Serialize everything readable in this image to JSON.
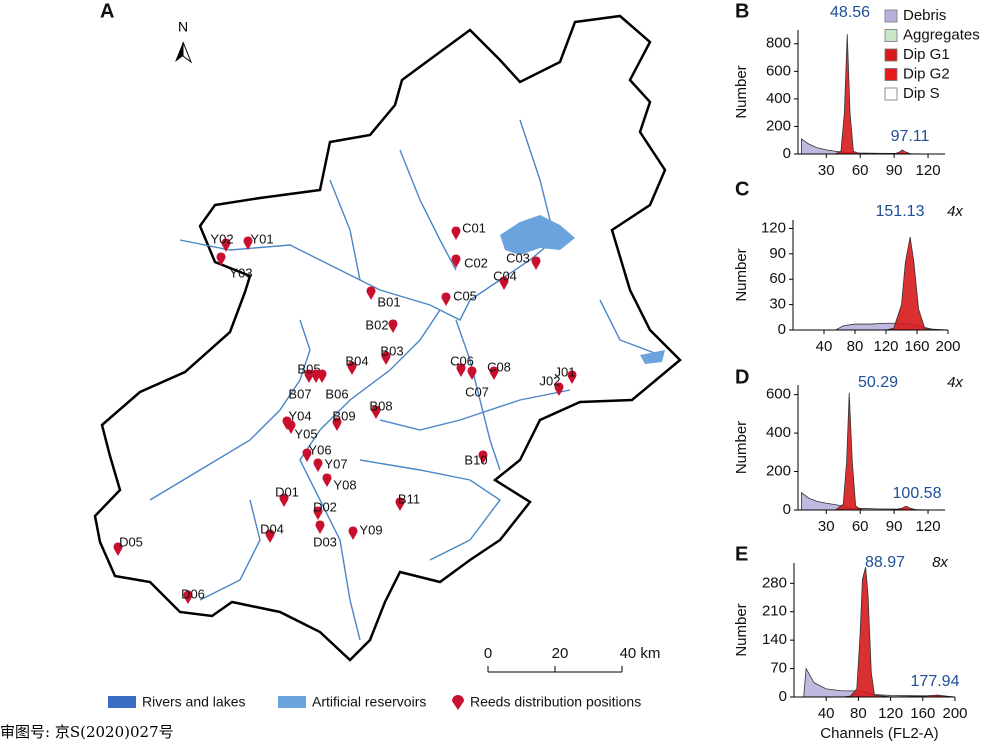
{
  "map": {
    "label": "A",
    "north": "N",
    "sites": [
      "Y01",
      "Y02",
      "Y03",
      "C01",
      "C02",
      "C03",
      "C04",
      "C05",
      "B01",
      "B02",
      "B03",
      "B04",
      "B05",
      "B06",
      "B07",
      "C06",
      "C07",
      "C08",
      "J01",
      "J02",
      "Y04",
      "Y05",
      "B09",
      "B08",
      "Y06",
      "Y07",
      "Y08",
      "B10",
      "B11",
      "D01",
      "D02",
      "D03",
      "Y09",
      "D04",
      "D05",
      "D06"
    ],
    "scale_ticks": [
      "0",
      "20",
      "40 km"
    ],
    "legend": [
      "Rivers and lakes",
      "Artificial reservoirs",
      "Reeds distribution positions"
    ],
    "approval": "审图号: 京S(2020)027号"
  },
  "chart_data": [
    {
      "type": "area",
      "panel": "B",
      "ylabel": "Number",
      "peak_labels": [
        48.56,
        97.11
      ],
      "legend": [
        {
          "name": "Debris",
          "color": "#b9b0dc"
        },
        {
          "name": "Aggregates",
          "color": "#c8e6c8"
        },
        {
          "name": "Dip G1",
          "color": "#d7191c"
        },
        {
          "name": "Dip G2",
          "color": "#e41a1c"
        },
        {
          "name": "Dip S",
          "color": "#ffffff"
        }
      ],
      "x": [
        8,
        15,
        22,
        30,
        38,
        43,
        46,
        48.56,
        51,
        54,
        60,
        75,
        90,
        95,
        97.11,
        100,
        105,
        125
      ],
      "series": [
        {
          "name": "Debris",
          "color": "#b9b0dc",
          "values": [
            110,
            70,
            45,
            30,
            20,
            15,
            12,
            10,
            9,
            8,
            7,
            5,
            4,
            3,
            3,
            3,
            2,
            0
          ]
        },
        {
          "name": "Dip G1",
          "color": "#d7191c",
          "values": [
            0,
            0,
            0,
            0,
            0,
            20,
            300,
            870,
            300,
            20,
            0,
            0,
            0,
            0,
            0,
            0,
            0,
            0
          ]
        },
        {
          "name": "Dip G2",
          "color": "#e41a1c",
          "values": [
            0,
            0,
            0,
            0,
            0,
            0,
            0,
            0,
            0,
            0,
            0,
            0,
            0,
            15,
            30,
            15,
            0,
            0
          ]
        }
      ],
      "xlim": [
        5,
        135
      ],
      "ylim": [
        0,
        900
      ],
      "xticks": [
        30,
        60,
        90,
        120
      ],
      "yticks": [
        0,
        200,
        400,
        600,
        800
      ]
    },
    {
      "type": "area",
      "panel": "C",
      "ylabel": "Number",
      "peak_labels": [
        151.13
      ],
      "scale": "4x",
      "x": [
        55,
        65,
        80,
        100,
        120,
        130,
        140,
        145,
        151.13,
        156,
        162,
        170,
        180,
        200
      ],
      "series": [
        {
          "name": "Debris",
          "color": "#b9b0dc",
          "values": [
            0,
            5,
            7,
            7,
            8,
            8,
            8,
            8,
            7,
            6,
            5,
            3,
            1,
            0
          ]
        },
        {
          "name": "Dip G1",
          "color": "#d7191c",
          "values": [
            0,
            0,
            0,
            0,
            0,
            2,
            30,
            80,
            110,
            80,
            25,
            2,
            0,
            0
          ]
        }
      ],
      "xlim": [
        0,
        200
      ],
      "ylim": [
        0,
        130
      ],
      "xticks": [
        40,
        80,
        120,
        160,
        200
      ],
      "yticks": [
        0,
        30,
        60,
        90,
        120
      ]
    },
    {
      "type": "area",
      "panel": "D",
      "ylabel": "Number",
      "peak_labels": [
        50.29,
        100.58
      ],
      "scale": "4x",
      "x": [
        8,
        15,
        22,
        30,
        38,
        45,
        48,
        50.29,
        53,
        56,
        62,
        75,
        90,
        97,
        100.58,
        104,
        110,
        125
      ],
      "series": [
        {
          "name": "Debris",
          "color": "#b9b0dc",
          "values": [
            90,
            60,
            45,
            35,
            28,
            20,
            15,
            12,
            10,
            9,
            8,
            6,
            5,
            4,
            4,
            3,
            2,
            0
          ]
        },
        {
          "name": "Dip G1",
          "color": "#d7191c",
          "values": [
            0,
            0,
            0,
            0,
            0,
            30,
            250,
            610,
            250,
            20,
            0,
            0,
            0,
            0,
            0,
            0,
            0,
            0
          ]
        },
        {
          "name": "Dip G2",
          "color": "#e41a1c",
          "values": [
            0,
            0,
            0,
            0,
            0,
            0,
            0,
            0,
            0,
            0,
            0,
            0,
            0,
            10,
            20,
            10,
            0,
            0
          ]
        }
      ],
      "xlim": [
        5,
        135
      ],
      "ylim": [
        0,
        650
      ],
      "xticks": [
        30,
        60,
        90,
        120
      ],
      "yticks": [
        0,
        200,
        400,
        600
      ]
    },
    {
      "type": "area",
      "panel": "E",
      "ylabel": "Number",
      "xlabel": "Channels (FL2-A)",
      "peak_labels": [
        88.97,
        177.94
      ],
      "scale": "8x",
      "x": [
        12,
        15,
        25,
        40,
        60,
        70,
        78,
        82,
        85,
        88.97,
        92,
        96,
        100,
        120,
        160,
        177.94,
        190,
        200
      ],
      "series": [
        {
          "name": "Debris",
          "color": "#b9b0dc",
          "values": [
            0,
            70,
            35,
            20,
            15,
            15,
            15,
            15,
            14,
            12,
            10,
            8,
            6,
            4,
            3,
            3,
            1,
            0
          ]
        },
        {
          "name": "Dip G1",
          "color": "#d7191c",
          "values": [
            0,
            0,
            0,
            0,
            0,
            2,
            20,
            150,
            290,
            320,
            250,
            60,
            5,
            0,
            0,
            0,
            0,
            0
          ]
        },
        {
          "name": "Dip G2",
          "color": "#e41a1c",
          "values": [
            0,
            0,
            0,
            0,
            0,
            0,
            0,
            0,
            0,
            0,
            0,
            0,
            0,
            0,
            2,
            5,
            2,
            0
          ]
        }
      ],
      "xlim": [
        0,
        200
      ],
      "ylim": [
        0,
        330
      ],
      "xticks": [
        40,
        80,
        120,
        160,
        200
      ],
      "yticks": [
        0,
        70,
        140,
        210,
        280
      ]
    }
  ]
}
